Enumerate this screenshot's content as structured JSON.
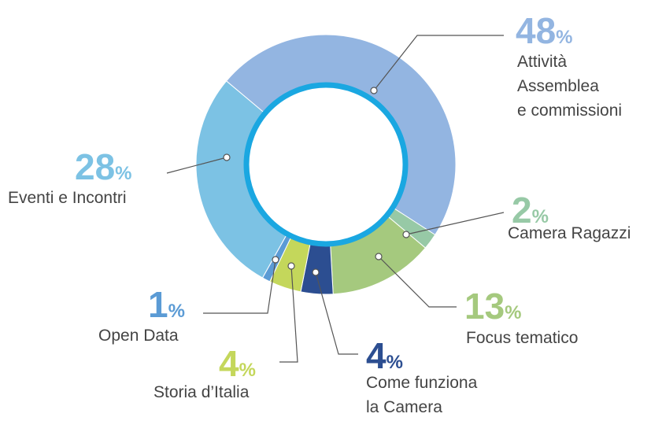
{
  "chart_data": {
    "type": "pie",
    "donut": true,
    "unit": "%",
    "categories": [
      "Attività\nAssemblea\ne commissioni",
      "Camera Ragazzi",
      "Focus tematico",
      "Come funziona\nla Camera",
      "Storia d’Italia",
      "Open Data",
      "Eventi e Incontri"
    ],
    "values": [
      48,
      2,
      13,
      4,
      4,
      1,
      28
    ],
    "colors": [
      "#93b5e1",
      "#97c9a6",
      "#a5c97e",
      "#2c4e91",
      "#c4d75b",
      "#5b9bd5",
      "#7cc2e4"
    ],
    "ring_color": "#1aa7e1"
  }
}
